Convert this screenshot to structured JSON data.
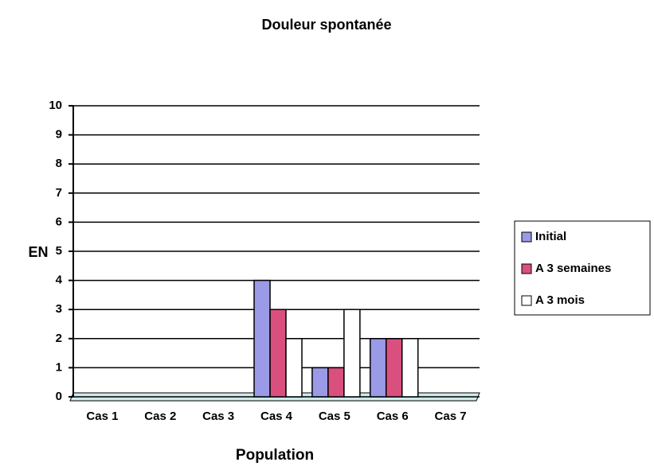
{
  "chart_data": {
    "type": "bar",
    "title": "Douleur spontanée",
    "x_label": "Population",
    "y_label": "EN",
    "categories": [
      "Cas 1",
      "Cas 2",
      "Cas 3",
      "Cas 4",
      "Cas 5",
      "Cas 6",
      "Cas 7"
    ],
    "series": [
      {
        "name": "Initial",
        "color": "#9a9ae6",
        "values": [
          0,
          0,
          0,
          4,
          1,
          2,
          0
        ]
      },
      {
        "name": "A 3 semaines",
        "color": "#d9507f",
        "values": [
          0,
          0,
          0,
          3,
          1,
          2,
          0
        ]
      },
      {
        "name": "A 3 mois",
        "color": "#ffffff",
        "values": [
          0,
          0,
          0,
          2,
          3,
          2,
          0
        ]
      }
    ],
    "ylim": [
      0,
      10
    ],
    "yticks": [
      0,
      1,
      2,
      3,
      4,
      5,
      6,
      7,
      8,
      9,
      10
    ],
    "grid": true,
    "legend": "right"
  }
}
